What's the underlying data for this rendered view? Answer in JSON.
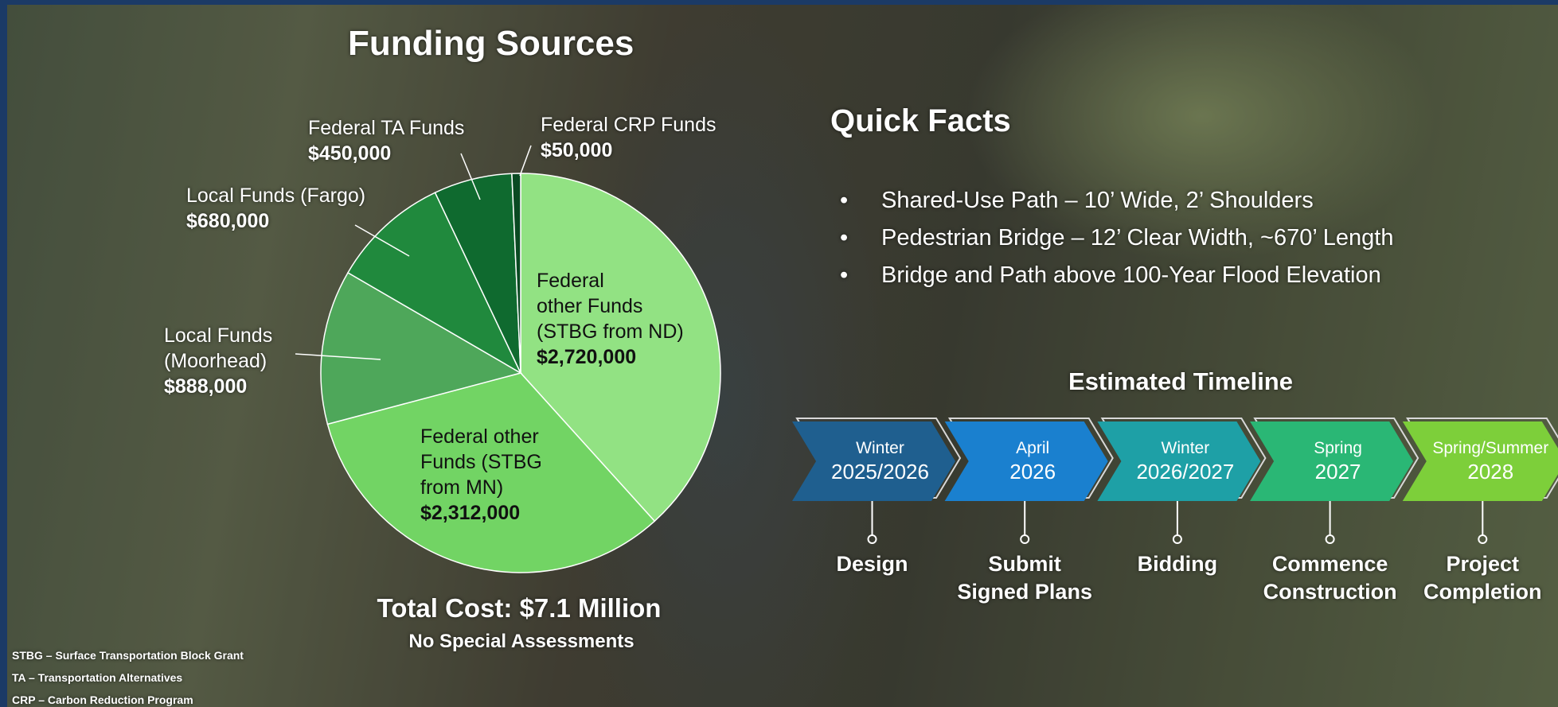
{
  "chart_data": {
    "type": "pie",
    "title": "Funding Sources",
    "categories": [
      "Federal\nother Funds\n(STBG from ND)",
      "Federal other\nFunds (STBG\nfrom MN)",
      "Local Funds\n(Moorhead)",
      "Local Funds (Fargo)",
      "Federal TA Funds",
      "Federal CRP Funds"
    ],
    "values": [
      2720000,
      2312000,
      888000,
      680000,
      450000,
      50000
    ],
    "value_labels": [
      "$2,720,000",
      "$2,312,000",
      "$888,000",
      "$680,000",
      "$450,000",
      "$50,000"
    ],
    "colors": [
      "#92e283",
      "#72d464",
      "#4ea75a",
      "#20893d",
      "#0f6a2f",
      "#0a4a22"
    ]
  },
  "total": {
    "cost": "Total Cost: $7.1 Million",
    "note": "No Special Assessments"
  },
  "quick_facts": {
    "title": "Quick Facts",
    "items": [
      "Shared-Use Path – 10’ Wide, 2’ Shoulders",
      "Pedestrian Bridge – 12’ Clear Width, ~670’ Length",
      "Bridge and Path above 100-Year Flood Elevation"
    ]
  },
  "timeline": {
    "title": "Estimated Timeline",
    "steps": [
      {
        "season": "Winter",
        "year": "2025/2026",
        "task": "Design"
      },
      {
        "season": "April",
        "year": "2026",
        "task": "Submit\nSigned Plans"
      },
      {
        "season": "Winter",
        "year": "2026/2027",
        "task": "Bidding"
      },
      {
        "season": "Spring",
        "year": "2027",
        "task": "Commence\nConstruction"
      },
      {
        "season": "Spring/Summer",
        "year": "2028",
        "task": "Project\nCompletion"
      }
    ]
  },
  "footnotes": [
    "STBG – Surface Transportation Block Grant",
    "TA – Transportation Alternatives",
    "CRP – Carbon Reduction Program"
  ]
}
